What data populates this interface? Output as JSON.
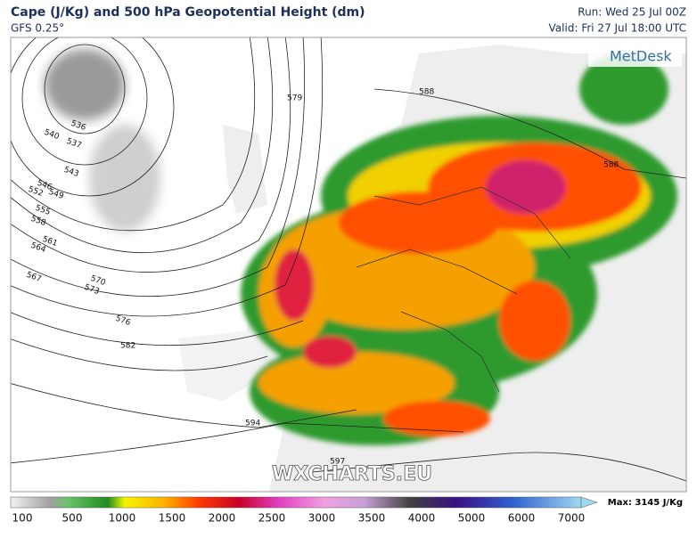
{
  "header": {
    "title": "Cape (J/Kg) and 500 hPa Geopotential Height (dm)",
    "model": "GFS 0.25°",
    "run": "Run: Wed 25 Jul 00Z",
    "valid": "Valid: Fri 27 Jul 18:00 UTC"
  },
  "logo": "MetDesk",
  "watermark": "WXCHARTS.EU",
  "contour_labels": [
    536,
    540,
    537,
    543,
    546,
    549,
    552,
    555,
    558,
    561,
    564,
    567,
    570,
    573,
    576,
    579,
    582,
    588,
    588,
    594,
    597
  ],
  "colorbar": {
    "ticks": [
      100,
      500,
      1000,
      1500,
      2000,
      2500,
      3000,
      3500,
      4000,
      5000,
      6000,
      7000
    ],
    "max_label": "Max: 3145 J/Kg"
  }
}
